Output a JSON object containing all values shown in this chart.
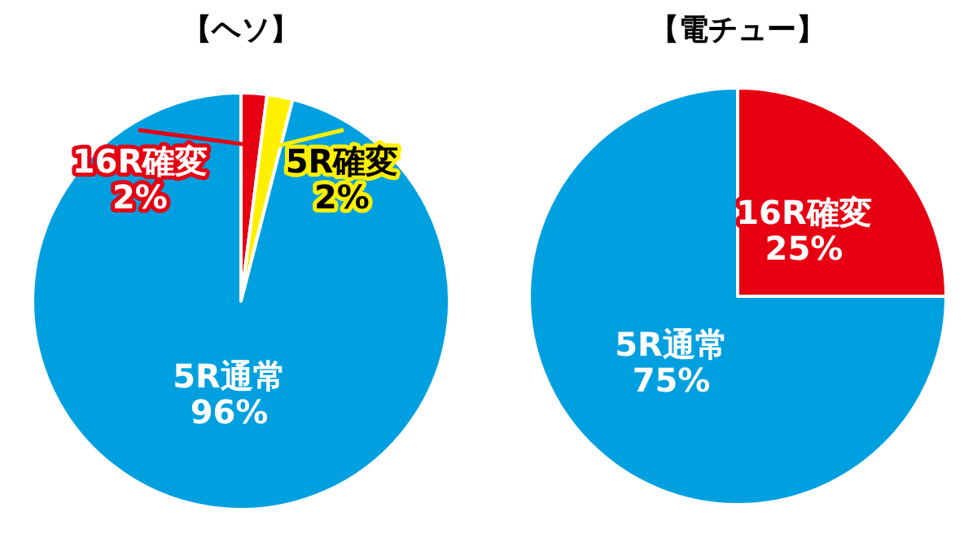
{
  "chart_data": [
    {
      "type": "pie",
      "title": "【ヘソ】",
      "categories": [
        "16R確変",
        "5R確変",
        "5R通常"
      ],
      "values": [
        2,
        2,
        96
      ],
      "colors": [
        "#e60012",
        "#fff000",
        "#00a0e0"
      ],
      "value_labels": [
        "2%",
        "2%",
        "96%"
      ]
    },
    {
      "type": "pie",
      "title": "【電チュー】",
      "categories": [
        "16R確変",
        "5R通常"
      ],
      "values": [
        25,
        75
      ],
      "colors": [
        "#e60012",
        "#00a0e0"
      ],
      "value_labels": [
        "25%",
        "75%"
      ]
    }
  ]
}
